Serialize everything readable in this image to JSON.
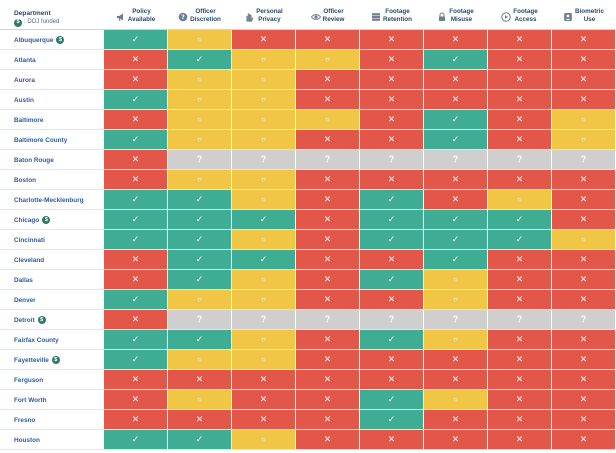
{
  "header": {
    "department_label": "Department",
    "doj_badge": "$",
    "doj_note": ": DOJ funded",
    "columns": [
      {
        "label": "Policy\nAvailable",
        "icon": "megaphone-icon"
      },
      {
        "label": "Officer\nDiscretion",
        "icon": "question-badge-icon"
      },
      {
        "label": "Personal\nPrivacy",
        "icon": "hand-icon"
      },
      {
        "label": "Officer\nReview",
        "icon": "eye-icon"
      },
      {
        "label": "Footage\nRetention",
        "icon": "database-icon"
      },
      {
        "label": "Footage\nMisuse",
        "icon": "lock-icon"
      },
      {
        "label": "Footage\nAccess",
        "icon": "play-icon"
      },
      {
        "label": "Biometric\nUse",
        "icon": "person-badge-icon"
      }
    ]
  },
  "symbols": {
    "check": "✓",
    "circle": "○",
    "x": "✕",
    "question": "?"
  },
  "colors": {
    "check": "#3fad94",
    "circle": "#f1c645",
    "x": "#e2574a",
    "question": "#cfcfcf"
  },
  "rows": [
    {
      "name": "Albuquerque",
      "doj": true,
      "cells": [
        "check",
        "circle",
        "x",
        "x",
        "x",
        "x",
        "x",
        "x"
      ]
    },
    {
      "name": "Atlanta",
      "doj": false,
      "cells": [
        "x",
        "check",
        "circle",
        "circle",
        "x",
        "check",
        "x",
        "x"
      ]
    },
    {
      "name": "Aurora",
      "doj": false,
      "cells": [
        "x",
        "circle",
        "circle",
        "x",
        "x",
        "x",
        "x",
        "x"
      ]
    },
    {
      "name": "Austin",
      "doj": false,
      "cells": [
        "check",
        "circle",
        "circle",
        "x",
        "x",
        "x",
        "x",
        "x"
      ]
    },
    {
      "name": "Baltimore",
      "doj": false,
      "cells": [
        "x",
        "circle",
        "circle",
        "circle",
        "x",
        "check",
        "x",
        "circle"
      ]
    },
    {
      "name": "Baltimore County",
      "doj": false,
      "cells": [
        "check",
        "circle",
        "circle",
        "x",
        "x",
        "check",
        "x",
        "circle"
      ]
    },
    {
      "name": "Baton Rouge",
      "doj": false,
      "cells": [
        "x",
        "question",
        "question",
        "question",
        "question",
        "question",
        "question",
        "question"
      ]
    },
    {
      "name": "Boston",
      "doj": false,
      "cells": [
        "x",
        "circle",
        "circle",
        "x",
        "x",
        "x",
        "x",
        "x"
      ]
    },
    {
      "name": "Charlotte-Mecklenburg",
      "doj": false,
      "cells": [
        "check",
        "check",
        "circle",
        "x",
        "check",
        "x",
        "circle",
        "x"
      ]
    },
    {
      "name": "Chicago",
      "doj": true,
      "cells": [
        "check",
        "check",
        "check",
        "x",
        "check",
        "check",
        "check",
        "x"
      ]
    },
    {
      "name": "Cincinnati",
      "doj": false,
      "cells": [
        "check",
        "check",
        "circle",
        "x",
        "check",
        "check",
        "check",
        "circle"
      ]
    },
    {
      "name": "Cleveland",
      "doj": false,
      "cells": [
        "x",
        "check",
        "check",
        "x",
        "x",
        "check",
        "x",
        "x"
      ]
    },
    {
      "name": "Dallas",
      "doj": false,
      "cells": [
        "x",
        "check",
        "circle",
        "x",
        "check",
        "circle",
        "x",
        "x"
      ]
    },
    {
      "name": "Denver",
      "doj": false,
      "cells": [
        "check",
        "circle",
        "circle",
        "x",
        "x",
        "circle",
        "x",
        "x"
      ]
    },
    {
      "name": "Detroit",
      "doj": true,
      "cells": [
        "x",
        "question",
        "question",
        "question",
        "question",
        "question",
        "question",
        "question"
      ]
    },
    {
      "name": "Fairfax County",
      "doj": false,
      "cells": [
        "check",
        "check",
        "circle",
        "x",
        "check",
        "circle",
        "x",
        "x"
      ]
    },
    {
      "name": "Fayetteville",
      "doj": true,
      "cells": [
        "check",
        "circle",
        "circle",
        "x",
        "x",
        "x",
        "x",
        "x"
      ]
    },
    {
      "name": "Ferguson",
      "doj": false,
      "cells": [
        "x",
        "x",
        "x",
        "x",
        "x",
        "x",
        "x",
        "x"
      ]
    },
    {
      "name": "Fort Worth",
      "doj": false,
      "cells": [
        "x",
        "circle",
        "x",
        "x",
        "check",
        "circle",
        "x",
        "x"
      ]
    },
    {
      "name": "Fresno",
      "doj": false,
      "cells": [
        "x",
        "x",
        "x",
        "x",
        "check",
        "x",
        "x",
        "x"
      ]
    },
    {
      "name": "Houston",
      "doj": false,
      "cells": [
        "check",
        "check",
        "circle",
        "x",
        "x",
        "x",
        "x",
        "x"
      ]
    }
  ]
}
